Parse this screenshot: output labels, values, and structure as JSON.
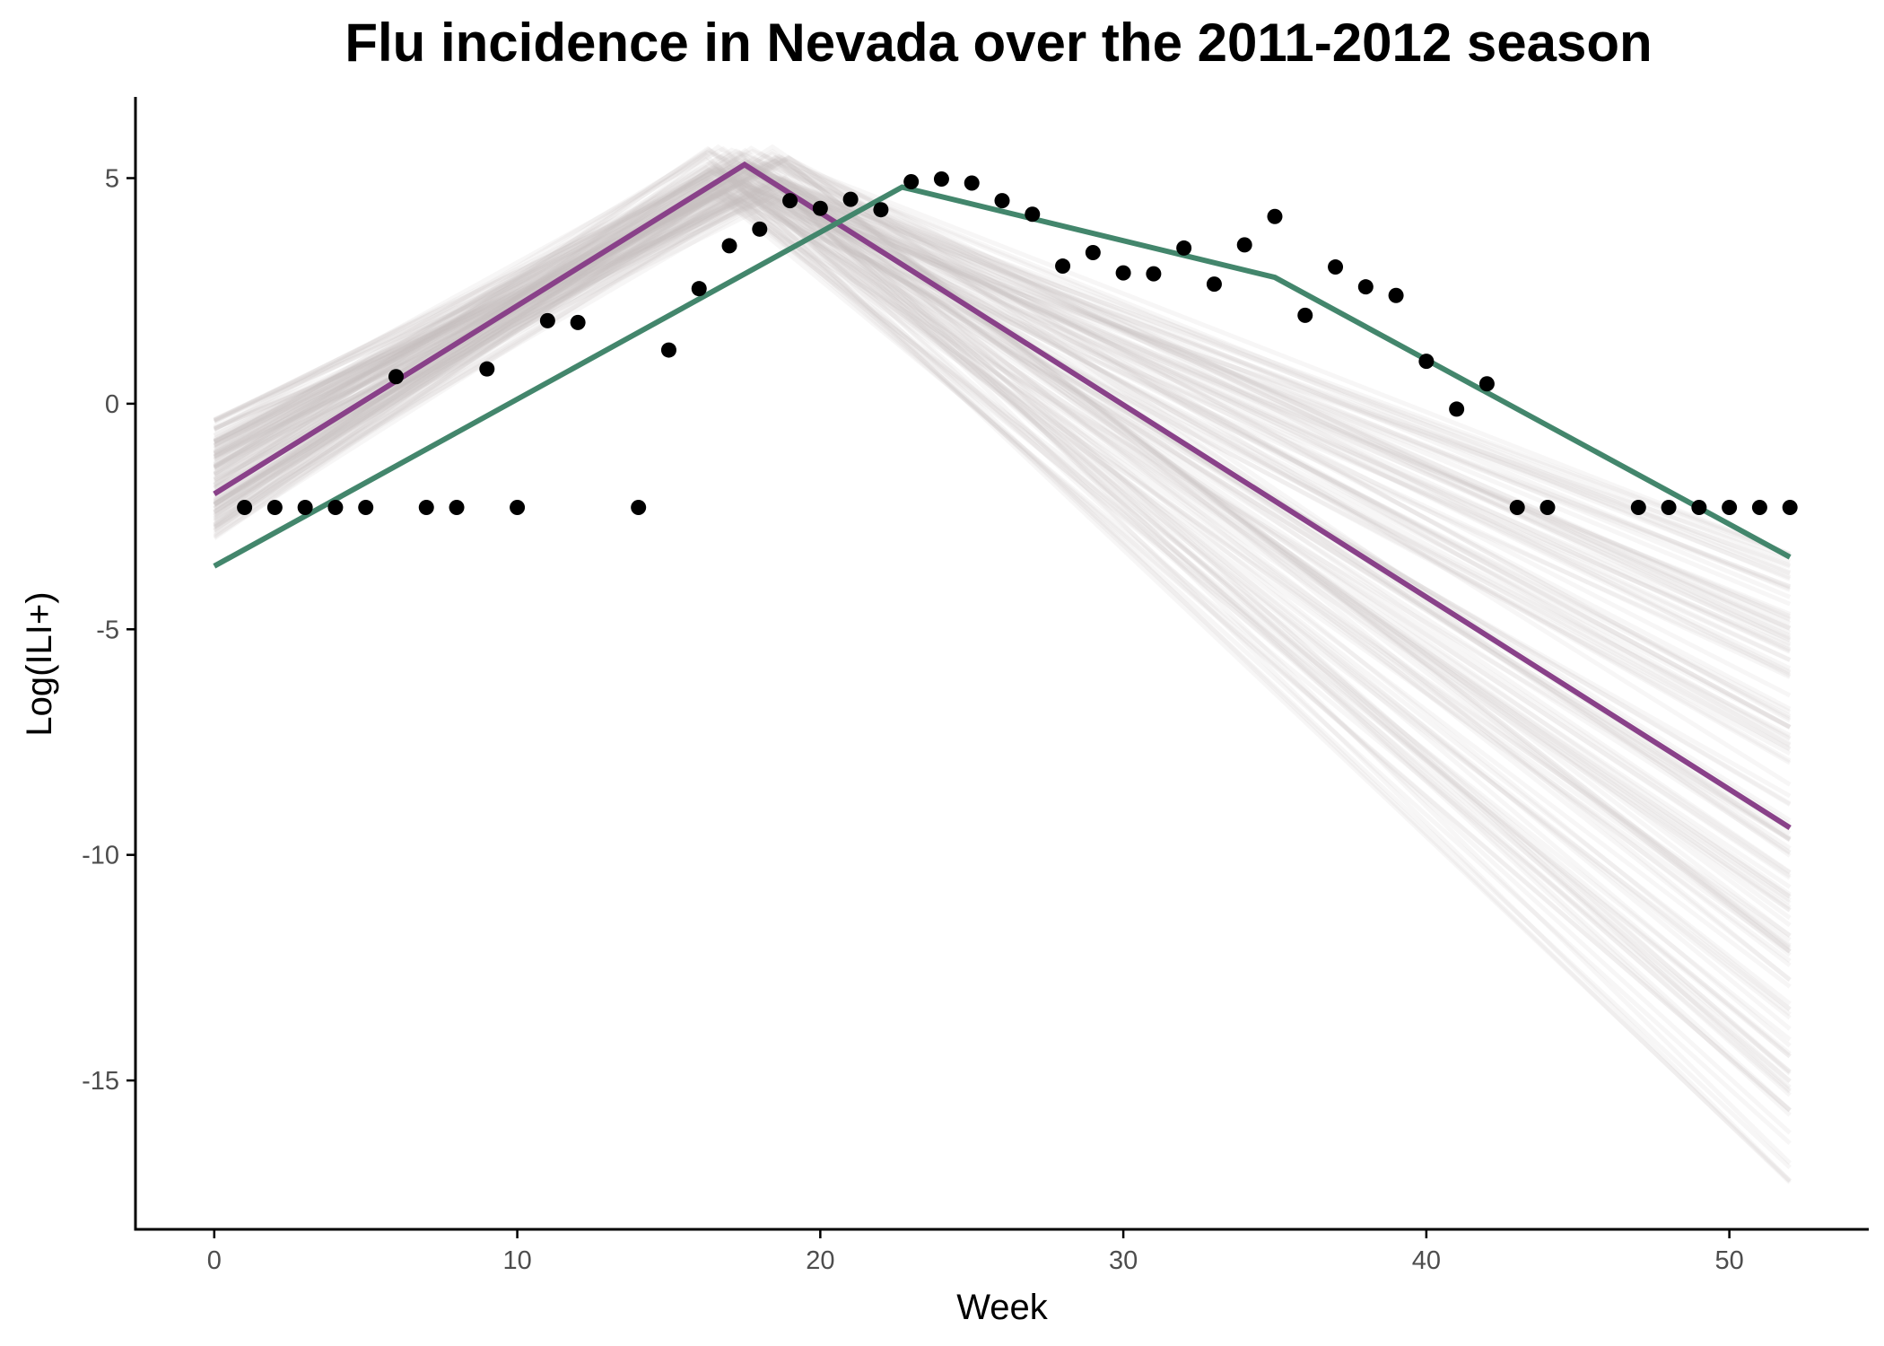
{
  "chart_data": {
    "type": "line",
    "title": "Flu incidence in Nevada over the 2011-2012 season",
    "xlabel": "Week",
    "ylabel": "Log(ILI+)",
    "xlim": [
      -2.6,
      54.6
    ],
    "ylim": [
      -18.3,
      6.8
    ],
    "xticks": [
      0,
      10,
      20,
      30,
      40,
      50
    ],
    "yticks": [
      5,
      0,
      -5,
      -10,
      -15
    ],
    "ytick_labels": [
      "5",
      "0",
      "-5",
      "-10",
      "-15"
    ],
    "grid": false,
    "legend": "none",
    "colors": {
      "observed": "#000000",
      "fit_purple": "#894189",
      "fit_green": "#43866c",
      "posterior": "#c8bebe"
    },
    "observed": {
      "x": [
        1,
        2,
        3,
        4,
        5,
        6,
        7,
        8,
        9,
        10,
        11,
        12,
        14,
        15,
        16,
        17,
        18,
        19,
        20,
        21,
        22,
        23,
        24,
        25,
        26,
        27,
        28,
        29,
        30,
        31,
        32,
        33,
        34,
        35,
        36,
        37,
        38,
        39,
        40,
        41,
        42,
        43,
        44,
        47,
        48,
        49,
        50,
        51,
        52
      ],
      "y": [
        -2.3,
        -2.3,
        -2.3,
        -2.3,
        -2.3,
        0.6,
        -2.3,
        -2.3,
        0.77,
        -2.3,
        1.84,
        1.8,
        -2.3,
        1.19,
        2.55,
        3.5,
        3.87,
        4.5,
        4.33,
        4.53,
        4.3,
        4.92,
        4.98,
        4.89,
        4.5,
        4.2,
        3.05,
        3.35,
        2.9,
        2.88,
        3.45,
        2.65,
        3.52,
        4.15,
        1.96,
        3.03,
        2.59,
        2.4,
        0.94,
        -0.12,
        0.44,
        -2.3,
        -2.3,
        -2.3,
        -2.3,
        -2.3,
        -2.3,
        -2.3,
        -2.3
      ]
    },
    "fits": [
      {
        "x": [
          0,
          17.5,
          52
        ],
        "y": [
          -2.0,
          5.3,
          -9.4
        ],
        "color": "#894189"
      },
      {
        "x": [
          0,
          22.7,
          35,
          52
        ],
        "y": [
          -3.6,
          4.8,
          2.8,
          -3.4
        ],
        "color": "#43866c"
      }
    ],
    "posterior": {
      "count": 140,
      "start_y_range": [
        -3.0,
        -0.3
      ],
      "peak_x_range": [
        16.2,
        19.0
      ],
      "peak_y_range": [
        4.5,
        5.7
      ],
      "end_y_range": [
        -17.4,
        -3.3
      ],
      "end_x": 52
    }
  }
}
